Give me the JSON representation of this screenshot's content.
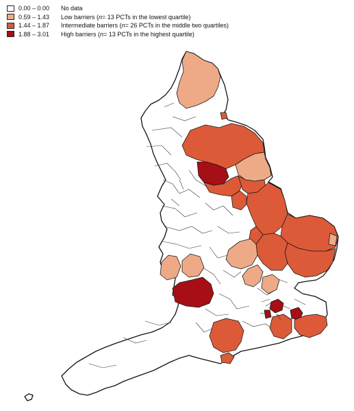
{
  "legend": {
    "items": [
      {
        "range": "0.00 – 0.00",
        "label_pre": "No data",
        "n": "",
        "label_post": "",
        "color": "#ffffff"
      },
      {
        "range": "0.59 – 1.43",
        "label_pre": "Low barriers (",
        "n": "n",
        "label_post": "= 13 PCTs in the lowest quartile)",
        "color": "#eeaa87"
      },
      {
        "range": "1.44 – 1.87",
        "label_pre": "Intermediate barriers (",
        "n": "n",
        "label_post": "= 26 PCTs in the middle two quartiles)",
        "color": "#dd5a38"
      },
      {
        "range": "1.88 – 3.01",
        "label_pre": "High barriers (",
        "n": "n",
        "label_post": "= 13 PCTs in the highest quartile)",
        "color": "#a50f15"
      }
    ]
  }
}
